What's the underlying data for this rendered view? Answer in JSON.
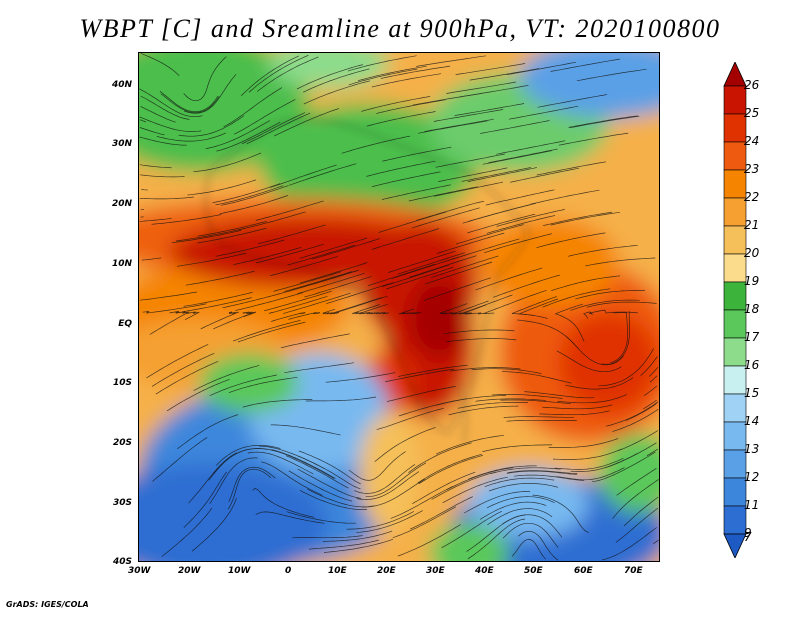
{
  "title": "WBPT [C] and Sreamline at 900hPa, VT: 2020100800",
  "credit": "GrADS: IGES/COLA",
  "map": {
    "lat_labels": [
      "40N",
      "30N",
      "20N",
      "10N",
      "EQ",
      "10S",
      "20S",
      "30S",
      "40S"
    ],
    "lon_labels": [
      "30W",
      "20W",
      "10W",
      "0",
      "10E",
      "20E",
      "30E",
      "40E",
      "50E",
      "60E",
      "70E"
    ]
  },
  "colorbar": {
    "labels": [
      "26",
      "25",
      "24",
      "23",
      "22",
      "21",
      "20",
      "19",
      "18",
      "17",
      "16",
      "15",
      "14",
      "13",
      "12",
      "11",
      "9",
      "7"
    ],
    "colors": [
      "#a50000",
      "#c81400",
      "#e03200",
      "#ee5a10",
      "#f58400",
      "#f5a030",
      "#f5c05a",
      "#fadc8c",
      "#3cb43c",
      "#5ac85a",
      "#8cdc8c",
      "#c8f0f0",
      "#a0d2f5",
      "#78b9f0",
      "#5aa0e6",
      "#3c87dc",
      "#2d6ed2",
      "#1e5ac3"
    ]
  }
}
